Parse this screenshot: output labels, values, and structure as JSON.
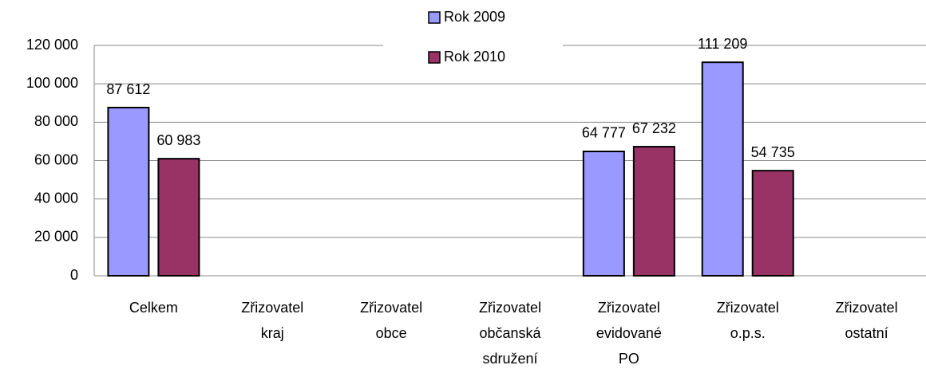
{
  "chart_data": {
    "type": "bar",
    "categories": [
      "Celkem",
      "Zřizovatel kraj",
      "Zřizovatel obce",
      "Zřizovatel občanská sdružení",
      "Zřizovatel evidované PO",
      "Zřizovatel o.p.s.",
      "Zřizovatel ostatní"
    ],
    "series": [
      {
        "name": "Rok 2009",
        "color": "#9999ff",
        "values": [
          87612,
          null,
          null,
          null,
          64777,
          111209,
          null
        ],
        "value_labels": [
          "87 612",
          null,
          null,
          null,
          "64 777",
          "111 209",
          null
        ]
      },
      {
        "name": "Rok 2010",
        "color": "#993366",
        "values": [
          60983,
          null,
          null,
          null,
          67232,
          54735,
          null
        ],
        "value_labels": [
          "60 983",
          null,
          null,
          null,
          "67 232",
          "54 735",
          null
        ]
      }
    ],
    "ylim": [
      0,
      120000
    ],
    "yticks": [
      0,
      {
        "value": 20000,
        "label": "20 000"
      },
      {
        "value": 40000,
        "label": "40 000"
      },
      {
        "value": 60000,
        "label": "60 000"
      },
      {
        "value": 80000,
        "label": "80 000"
      },
      {
        "value": 100000,
        "label": "100 000"
      },
      {
        "value": 120000,
        "label": "120 000"
      }
    ],
    "grid": true,
    "legend": "top"
  }
}
